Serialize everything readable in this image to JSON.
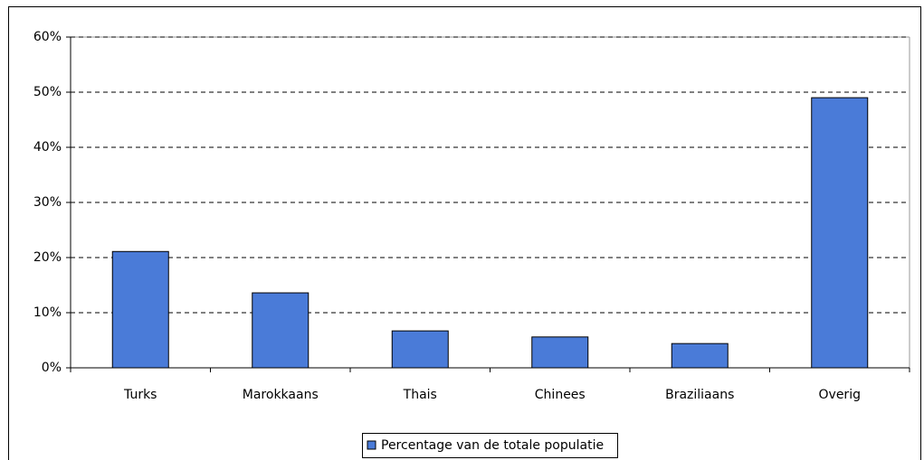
{
  "chart_data": {
    "type": "bar",
    "categories": [
      "Turks",
      "Marokkaans",
      "Thais",
      "Chinees",
      "Braziliaans",
      "Overig"
    ],
    "series": [
      {
        "name": "Percentage van de totale populatie",
        "color": "#4a7bd8",
        "values": [
          21.1,
          13.6,
          6.7,
          5.6,
          4.4,
          49.0
        ]
      }
    ],
    "ylim": [
      0,
      60
    ],
    "yticks": [
      {
        "value": 0,
        "label": "0%"
      },
      {
        "value": 10,
        "label": "10%"
      },
      {
        "value": 20,
        "label": "20%"
      },
      {
        "value": 30,
        "label": "30%"
      },
      {
        "value": 40,
        "label": "40%"
      },
      {
        "value": 50,
        "label": "50%"
      },
      {
        "value": 60,
        "label": "60%"
      }
    ],
    "grid": true
  }
}
